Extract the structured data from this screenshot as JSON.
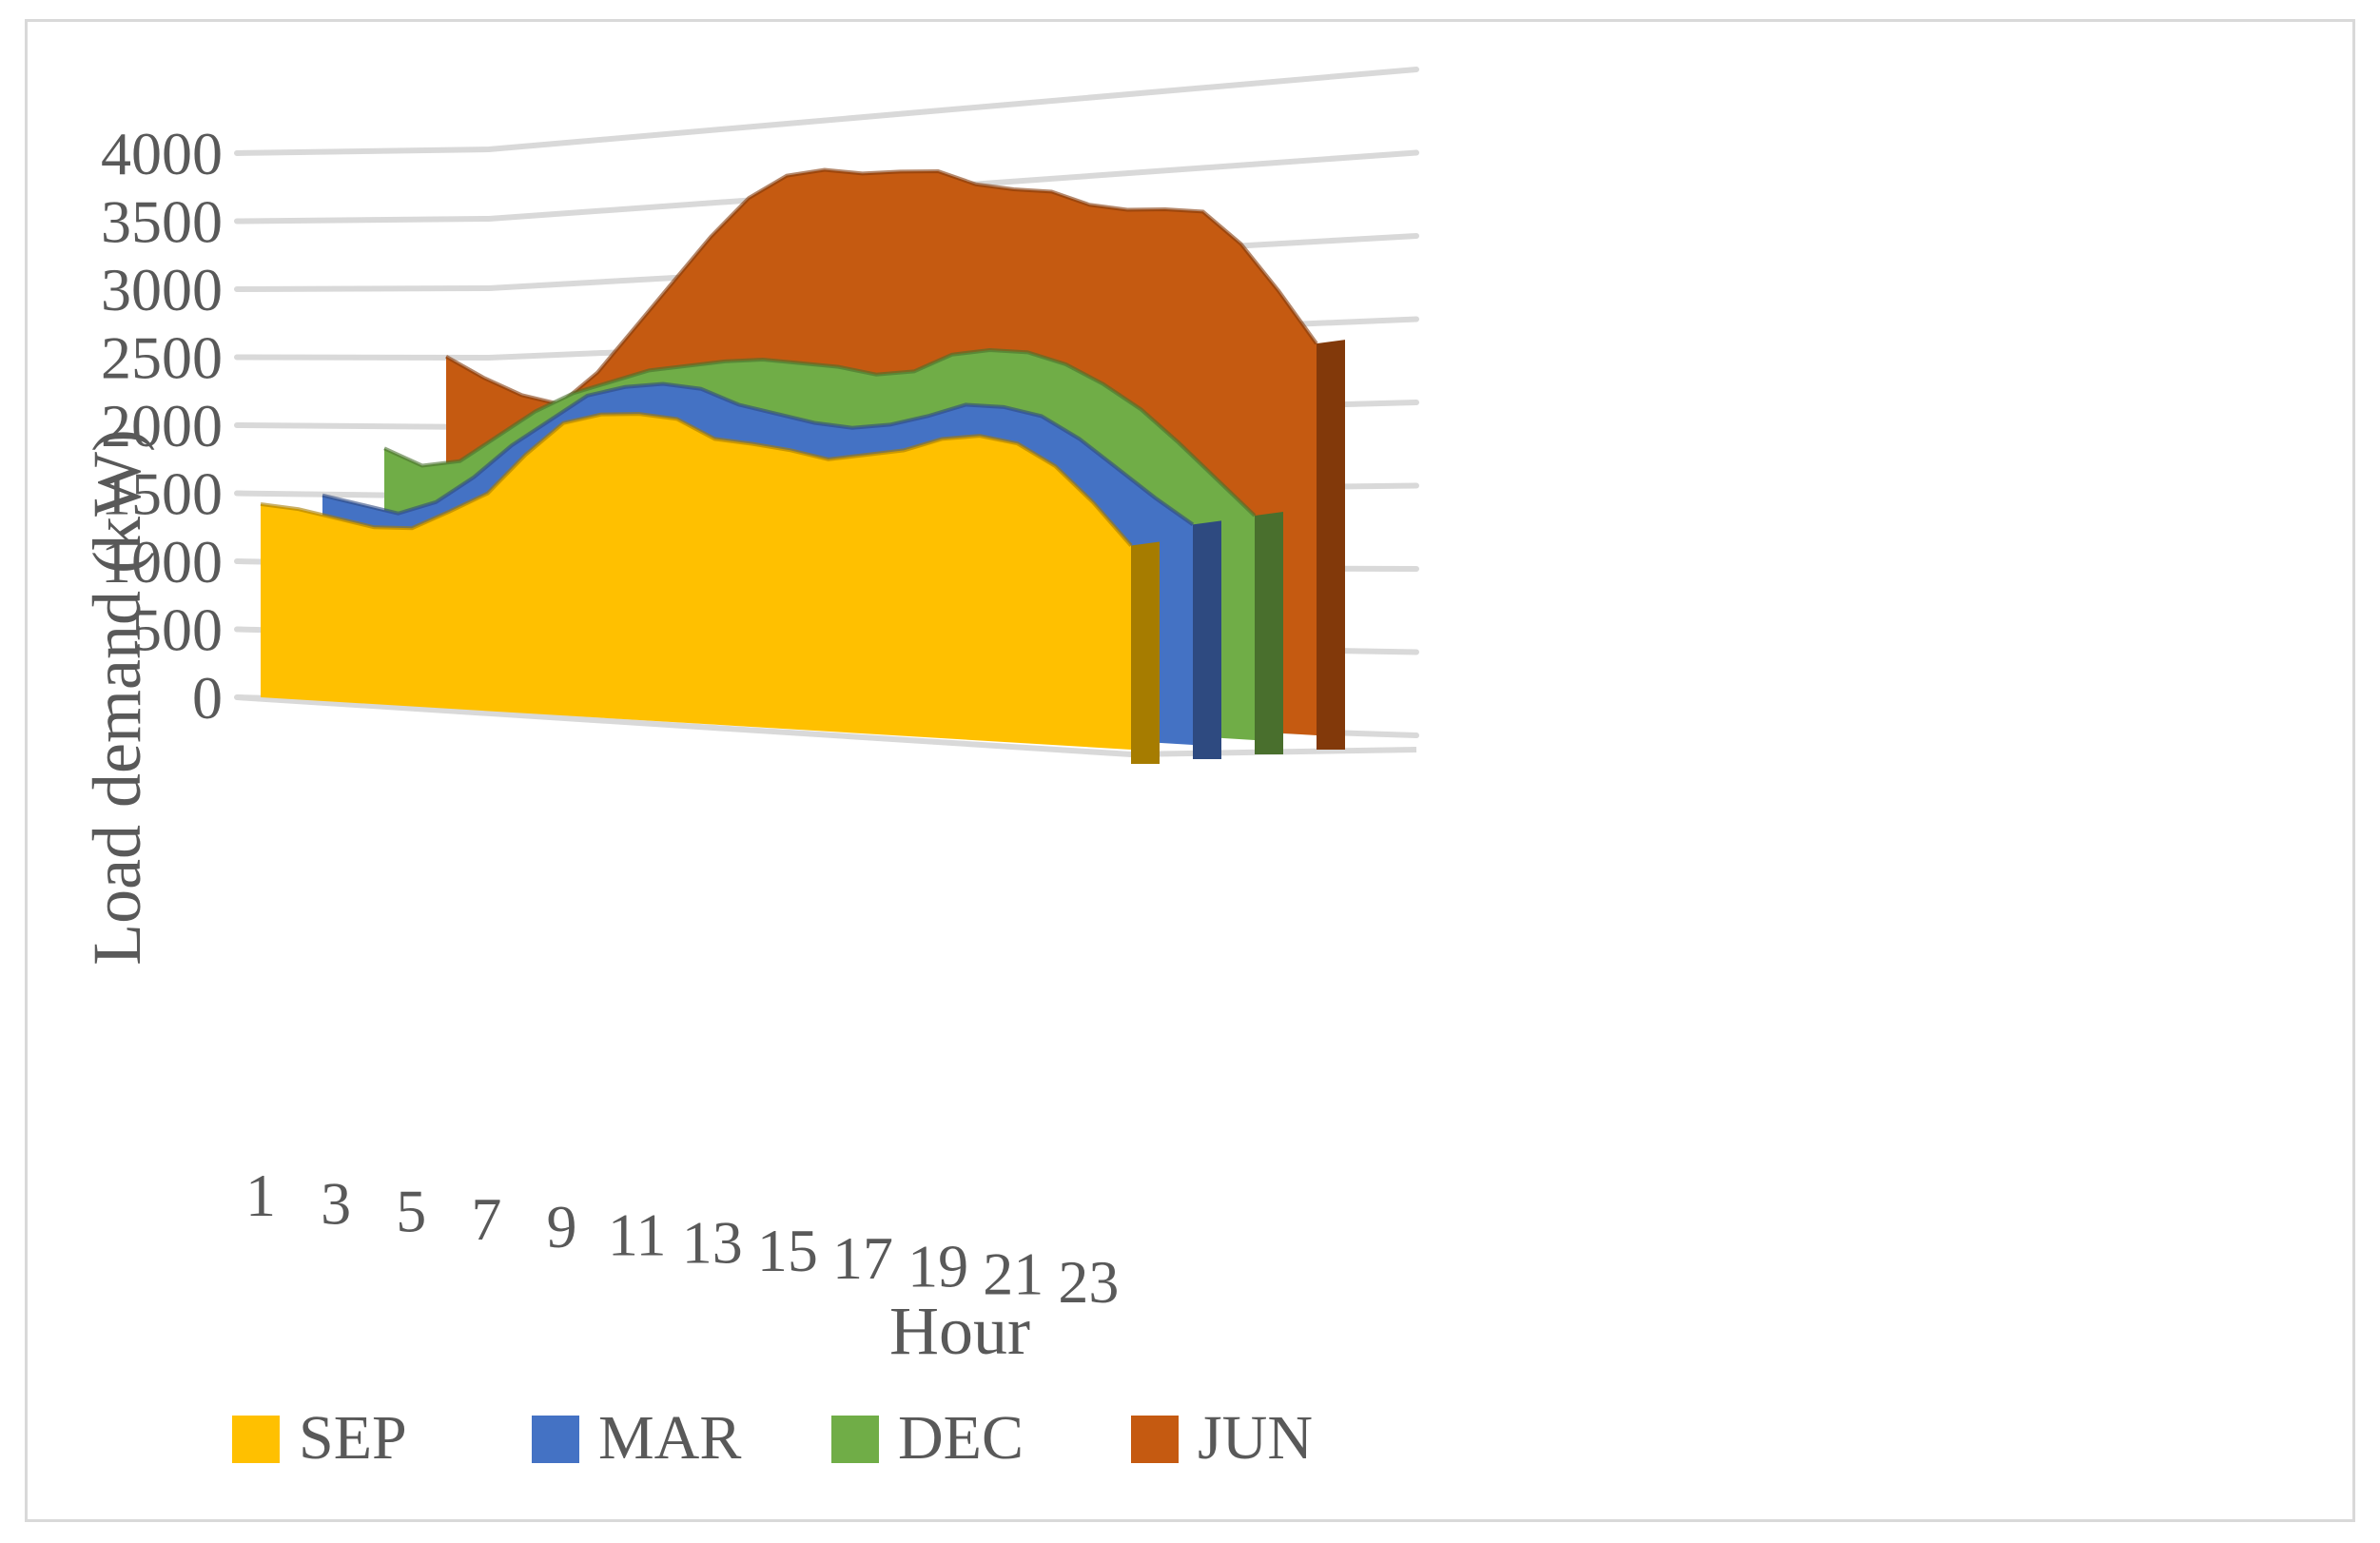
{
  "chart_data": {
    "type": "area",
    "title": "",
    "xlabel": "Hour",
    "ylabel": "Load demand (kW)",
    "ylim": [
      0,
      4000
    ],
    "y_ticks": [
      "0",
      "500",
      "1000",
      "1500",
      "2000",
      "2500",
      "3000",
      "3500",
      "4000"
    ],
    "x_ticks": [
      "1",
      "3",
      "5",
      "7",
      "9",
      "11",
      "13",
      "15",
      "17",
      "19",
      "21",
      "23"
    ],
    "x": [
      1,
      2,
      3,
      4,
      5,
      6,
      7,
      8,
      9,
      10,
      11,
      12,
      13,
      14,
      15,
      16,
      17,
      18,
      19,
      20,
      21,
      22,
      23,
      24
    ],
    "grid": true,
    "legend_position": "bottom-left",
    "series": [
      {
        "name": "SEP",
        "color": "#FFC000",
        "side_color": "#A67C00",
        "values": [
          1420,
          1400,
          1350,
          1300,
          1310,
          1450,
          1600,
          1900,
          2150,
          2230,
          2250,
          2230,
          2100,
          2080,
          2050,
          2000,
          2050,
          2100,
          2200,
          2240,
          2200,
          2050,
          1800,
          1500
        ]
      },
      {
        "name": "MAR",
        "color": "#4472C4",
        "side_color": "#2E4A80",
        "values": [
          1450,
          1400,
          1350,
          1450,
          1650,
          1900,
          2100,
          2300,
          2380,
          2420,
          2400,
          2300,
          2250,
          2200,
          2180,
          2220,
          2300,
          2400,
          2400,
          2350,
          2200,
          2000,
          1800,
          1620
        ]
      },
      {
        "name": "DEC",
        "color": "#70AD47",
        "side_color": "#496F2D",
        "values": [
          1760,
          1650,
          1700,
          1900,
          2100,
          2250,
          2350,
          2450,
          2500,
          2550,
          2580,
          2570,
          2560,
          2520,
          2560,
          2700,
          2750,
          2750,
          2680,
          2550,
          2380,
          2150,
          1900,
          1650
        ]
      },
      {
        "name": "JUN",
        "color": "#C55A11",
        "side_color": "#82390A",
        "values": [
          2400,
          2260,
          2150,
          2100,
          2350,
          2700,
          3050,
          3400,
          3700,
          3880,
          3940,
          3930,
          3960,
          3980,
          3900,
          3880,
          3880,
          3800,
          3780,
          3800,
          3800,
          3580,
          3250,
          2880
        ]
      }
    ]
  }
}
